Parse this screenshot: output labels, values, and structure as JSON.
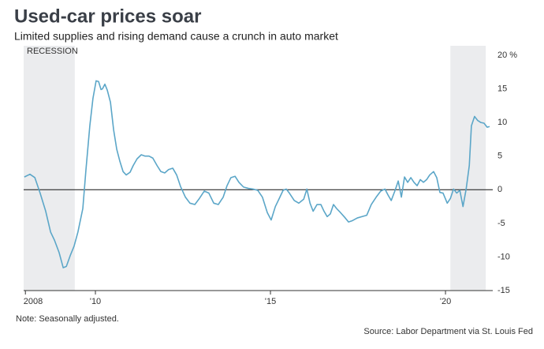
{
  "chart_data": {
    "type": "line",
    "title": "Used-car prices soar",
    "subtitle": "Limited supplies and rising demand cause a crunch in auto market",
    "recession_label": "RECESSION",
    "recessions": [
      [
        2007.95,
        2009.41
      ],
      [
        2020.14,
        2021.15
      ]
    ],
    "note": "Note: Seasonally adjusted.",
    "source": "Source: Labor Department via St. Louis Fed",
    "zero_line": true,
    "xlim": [
      2007.95,
      2021.35
    ],
    "xticks": [
      {
        "value": 2008,
        "label": "2008"
      },
      {
        "value": 2010,
        "label": "'10"
      },
      {
        "value": 2015,
        "label": "'15"
      },
      {
        "value": 2020,
        "label": "'20"
      }
    ],
    "ylim": [
      -15,
      20
    ],
    "yticks": [
      {
        "value": 20,
        "label": "20 %"
      },
      15,
      10,
      5,
      0,
      -5,
      -10,
      -15
    ],
    "series": [
      {
        "color": "#5ba6c8",
        "x": [
          2007.97,
          2008.13,
          2008.27,
          2008.42,
          2008.58,
          2008.72,
          2008.83,
          2008.96,
          2009.08,
          2009.17,
          2009.28,
          2009.39,
          2009.5,
          2009.64,
          2009.73,
          2009.84,
          2009.93,
          2010.02,
          2010.09,
          2010.16,
          2010.2,
          2010.27,
          2010.34,
          2010.43,
          2010.52,
          2010.61,
          2010.7,
          2010.79,
          2010.88,
          2010.99,
          2011.08,
          2011.19,
          2011.31,
          2011.42,
          2011.53,
          2011.64,
          2011.76,
          2011.87,
          2011.98,
          2012.09,
          2012.21,
          2012.32,
          2012.43,
          2012.57,
          2012.7,
          2012.84,
          2012.97,
          2013.11,
          2013.24,
          2013.38,
          2013.51,
          2013.65,
          2013.76,
          2013.87,
          2013.99,
          2014.1,
          2014.23,
          2014.37,
          2014.5,
          2014.64,
          2014.77,
          2014.91,
          2015.02,
          2015.14,
          2015.27,
          2015.36,
          2015.45,
          2015.54,
          2015.68,
          2015.81,
          2015.95,
          2016.04,
          2016.13,
          2016.22,
          2016.33,
          2016.44,
          2016.53,
          2016.62,
          2016.71,
          2016.8,
          2016.89,
          2017.0,
          2017.12,
          2017.23,
          2017.34,
          2017.48,
          2017.61,
          2017.75,
          2017.88,
          2018.02,
          2018.15,
          2018.27,
          2018.36,
          2018.45,
          2018.56,
          2018.65,
          2018.74,
          2018.83,
          2018.92,
          2019.01,
          2019.1,
          2019.19,
          2019.28,
          2019.37,
          2019.46,
          2019.55,
          2019.66,
          2019.75,
          2019.84,
          2019.93,
          2020.05,
          2020.14,
          2020.23,
          2020.32,
          2020.41,
          2020.5,
          2020.59,
          2020.68,
          2020.74,
          2020.83,
          2020.92,
          2021.01,
          2021.1,
          2021.19,
          2021.26
        ],
        "values": [
          1.9,
          2.3,
          1.8,
          -0.5,
          -3.2,
          -6.3,
          -7.5,
          -9.3,
          -11.6,
          -11.4,
          -9.8,
          -8.4,
          -6.3,
          -2.8,
          3.0,
          9.5,
          13.6,
          16.2,
          16.1,
          14.9,
          15.0,
          15.7,
          14.8,
          13.0,
          8.9,
          6.0,
          4.2,
          2.7,
          2.2,
          2.6,
          3.6,
          4.6,
          5.2,
          5.0,
          5.0,
          4.7,
          3.6,
          2.7,
          2.5,
          3.0,
          3.2,
          2.2,
          0.5,
          -1.1,
          -2.0,
          -2.2,
          -1.3,
          -0.2,
          -0.5,
          -2.0,
          -2.2,
          -1.1,
          0.6,
          1.8,
          2.0,
          1.1,
          0.4,
          0.2,
          0.1,
          -0.1,
          -1.1,
          -3.4,
          -4.5,
          -2.5,
          -1.1,
          -0.1,
          0.1,
          -0.5,
          -1.6,
          -2.0,
          -1.4,
          0.1,
          -2.0,
          -3.2,
          -2.2,
          -2.2,
          -3.2,
          -4.0,
          -3.6,
          -2.2,
          -2.8,
          -3.4,
          -4.1,
          -4.8,
          -4.6,
          -4.2,
          -4.0,
          -3.8,
          -2.2,
          -1.1,
          -0.2,
          0.1,
          -0.8,
          -1.6,
          -0.1,
          1.3,
          -1.1,
          1.9,
          1.1,
          1.8,
          1.1,
          0.6,
          1.5,
          1.1,
          1.5,
          2.2,
          2.7,
          1.8,
          -0.4,
          -0.5,
          -2.0,
          -1.3,
          0.1,
          -0.5,
          -0.1,
          -2.5,
          0.1,
          3.6,
          9.5,
          10.9,
          10.3,
          10.0,
          9.9,
          9.3,
          9.4
        ]
      }
    ]
  }
}
